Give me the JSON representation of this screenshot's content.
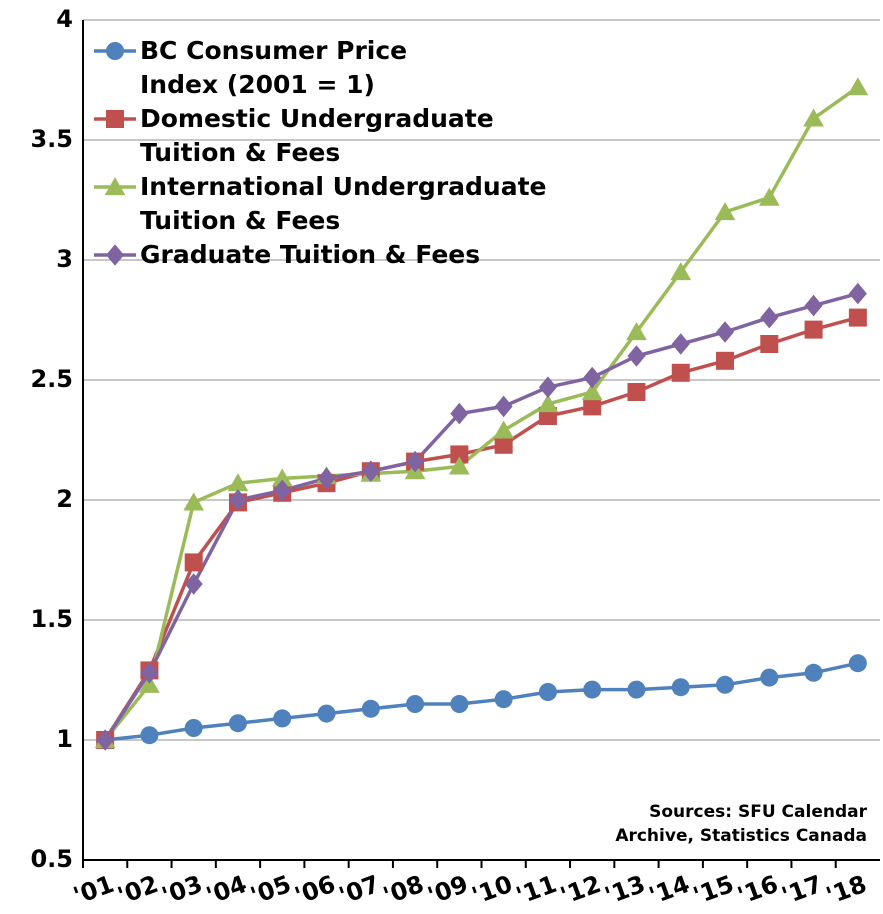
{
  "chart_data": {
    "type": "line",
    "categories": [
      "'01",
      "'02",
      "'03",
      "'04",
      "'05",
      "'06",
      "'07",
      "'08",
      "'09",
      "'10",
      "'11",
      "'12",
      "'13",
      "'14",
      "'15",
      "'16",
      "'17",
      "'18"
    ],
    "series": [
      {
        "name": "BC Consumer Price Index (2001 = 1)",
        "color": "#4f81bd",
        "marker": "circle",
        "values": [
          1,
          1.02,
          1.05,
          1.07,
          1.09,
          1.11,
          1.13,
          1.15,
          1.15,
          1.17,
          1.2,
          1.21,
          1.21,
          1.22,
          1.23,
          1.26,
          1.28,
          1.32
        ]
      },
      {
        "name": "Domestic Undergraduate Tuition & Fees",
        "color": "#c0504d",
        "marker": "square",
        "values": [
          1,
          1.29,
          1.74,
          1.99,
          2.03,
          2.07,
          2.12,
          2.16,
          2.19,
          2.23,
          2.35,
          2.39,
          2.45,
          2.53,
          2.58,
          2.65,
          2.71,
          2.76
        ]
      },
      {
        "name": "International Undergraduate Tuition & Fees",
        "color": "#9bbb59",
        "marker": "triangle",
        "values": [
          1,
          1.23,
          1.99,
          2.07,
          2.09,
          2.1,
          2.11,
          2.12,
          2.14,
          2.29,
          2.4,
          2.45,
          2.7,
          2.95,
          3.2,
          3.26,
          3.59,
          3.72
        ]
      },
      {
        "name": "Graduate Tuition & Fees",
        "color": "#8064a2",
        "marker": "diamond",
        "values": [
          1,
          1.28,
          1.65,
          2.0,
          2.04,
          2.09,
          2.12,
          2.16,
          2.36,
          2.39,
          2.47,
          2.51,
          2.6,
          2.65,
          2.7,
          2.76,
          2.81,
          2.86
        ]
      }
    ],
    "ylim": [
      0.5,
      4
    ],
    "yticks": [
      0.5,
      1,
      1.5,
      2,
      2.5,
      3,
      3.5,
      4
    ],
    "grid": true,
    "legend": "top-left",
    "annotation": "Sources: SFU Calendar Archive, Statistics Canada"
  }
}
